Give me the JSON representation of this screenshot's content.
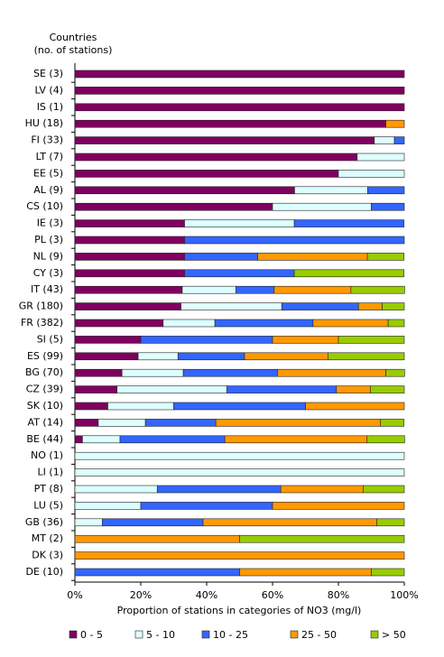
{
  "chart_data": {
    "type": "stacked_bar_horizontal",
    "y_axis_label": [
      "Countries",
      "(no. of stations)"
    ],
    "x_axis_label": "Proportion of stations in categories of NO3 (mg/l)",
    "categories": [
      "SE (3)",
      "LV (4)",
      "IS (1)",
      "HU (18)",
      "FI (33)",
      "LT (7)",
      "EE (5)",
      "AL (9)",
      "CS (10)",
      "IE (3)",
      "PL (3)",
      "NL (9)",
      "CY (3)",
      "IT (43)",
      "GR (180)",
      "FR (382)",
      "SI (5)",
      "ES (99)",
      "BG (70)",
      "CZ (39)",
      "SK (10)",
      "AT (14)",
      "BE (44)",
      "NO (1)",
      "LI (1)",
      "PT (8)",
      "LU (5)",
      "GB (36)",
      "MT (2)",
      "DK (3)",
      "DE (10)"
    ],
    "series": [
      {
        "name": "0 - 5",
        "color": "#800060",
        "values": [
          100,
          100,
          100,
          94.4,
          90.9,
          85.7,
          80,
          66.7,
          60,
          33.3,
          33.3,
          33.3,
          33.3,
          32.6,
          32.2,
          26.8,
          20,
          19.2,
          14.3,
          12.8,
          10,
          7.1,
          2.3,
          0,
          0,
          0,
          0,
          0,
          0,
          0,
          0
        ]
      },
      {
        "name": "5 - 10",
        "color": "#ddffff",
        "values": [
          0,
          0,
          0,
          0,
          6.1,
          14.3,
          20,
          22.2,
          30,
          33.3,
          0,
          0,
          0,
          16.3,
          30.6,
          15.7,
          0,
          12.1,
          18.6,
          33.3,
          20,
          14.3,
          11.4,
          100,
          100,
          25,
          20,
          8.3,
          0,
          0,
          0
        ]
      },
      {
        "name": "10 - 25",
        "color": "#3366ff",
        "values": [
          0,
          0,
          0,
          0,
          3.0,
          0,
          0,
          11.1,
          10,
          33.3,
          66.7,
          22.2,
          33.3,
          11.6,
          23.3,
          29.8,
          40,
          20.2,
          28.6,
          33.3,
          40,
          21.4,
          31.8,
          0,
          0,
          37.5,
          40,
          30.6,
          0,
          0,
          50
        ]
      },
      {
        "name": "25 - 50",
        "color": "#ff9900",
        "values": [
          0,
          0,
          0,
          5.6,
          0,
          0,
          0,
          0,
          0,
          0,
          0,
          33.3,
          0,
          23.3,
          7.2,
          22.8,
          20,
          25.3,
          32.9,
          10.3,
          30,
          50,
          43.2,
          0,
          0,
          25,
          40,
          52.8,
          50,
          100,
          40
        ]
      },
      {
        "name": "> 50",
        "color": "#99cc00",
        "values": [
          0,
          0,
          0,
          0,
          0,
          0,
          0,
          0,
          0,
          0,
          0,
          11.1,
          33.3,
          16.3,
          6.7,
          4.9,
          20,
          23.2,
          5.7,
          10.3,
          0,
          7.1,
          11.4,
          0,
          0,
          12.5,
          0,
          8.3,
          50,
          0,
          10
        ]
      }
    ],
    "xlim": [
      0,
      100
    ],
    "xticks": [
      {
        "value": 0,
        "label": "0%"
      },
      {
        "value": 20,
        "label": "20%"
      },
      {
        "value": 40,
        "label": "40%"
      },
      {
        "value": 60,
        "label": "60%"
      },
      {
        "value": 80,
        "label": "80%"
      },
      {
        "value": 100,
        "label": "100%"
      }
    ],
    "legend": "bottom"
  }
}
